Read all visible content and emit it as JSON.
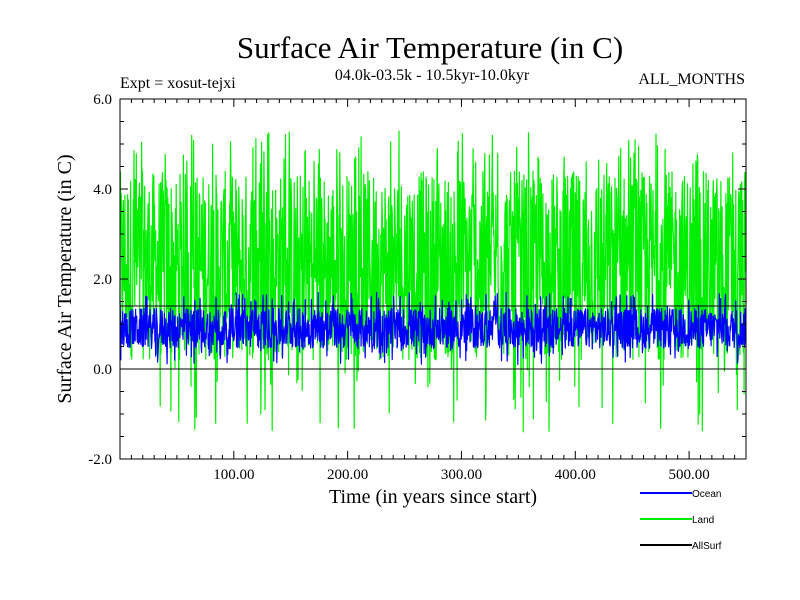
{
  "chart_data": {
    "type": "line",
    "title": "Surface Air Temperature (in C)",
    "subtitle_left": "Expt = xosut-tejxi",
    "subtitle_center": "04.0k-03.5k - 10.5kyr-10.0kyr",
    "subtitle_right": "ALL_MONTHS",
    "xlabel": "Time (in years since start)",
    "ylabel": "Surface Air Temperature (in C)",
    "xlim": [
      0,
      550
    ],
    "ylim": [
      -2.0,
      6.0
    ],
    "x_ticks": [
      100,
      200,
      300,
      400,
      500
    ],
    "x_tick_labels": [
      "100.00",
      "200.00",
      "300.00",
      "400.00",
      "500.00"
    ],
    "y_ticks": [
      -2,
      0,
      2,
      4,
      6
    ],
    "y_tick_labels": [
      "-2.0",
      "0.0",
      "2.0",
      "4.0",
      "6.0"
    ],
    "reference_line_y": 0.0,
    "series": [
      {
        "name": "Land",
        "color": "#00ee00",
        "mean": 2.5,
        "band_min": 0.2,
        "band_max": 4.4,
        "peak_max": 5.3,
        "peak_min": -1.4
      },
      {
        "name": "Ocean",
        "color": "#0000ff",
        "mean": 0.9,
        "band_min": 0.45,
        "band_max": 1.35,
        "peak_max": 1.7,
        "peak_min": 0.1
      },
      {
        "name": "AllSurf",
        "color": "#000000",
        "mean": 1.4,
        "band_min": 1.4,
        "band_max": 1.4,
        "peak_max": 1.4,
        "peak_min": 1.4
      }
    ],
    "legend": [
      {
        "name": "Ocean",
        "color": "#0000ff"
      },
      {
        "name": "Land",
        "color": "#00ee00"
      },
      {
        "name": "AllSurf",
        "color": "#000000"
      }
    ]
  }
}
